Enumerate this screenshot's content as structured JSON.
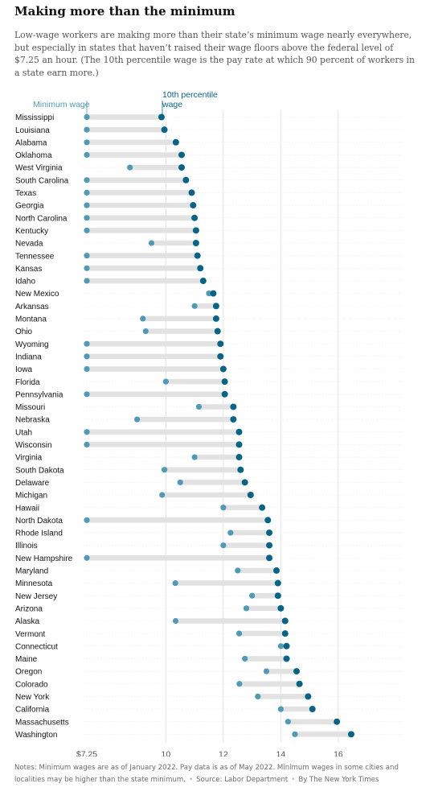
{
  "header": {
    "title": "Making more than the minimum",
    "subtitle": "Low-wage workers are making more than their state’s minimum wage nearly everywhere, but especially in states that haven’t raised their wage floors above the federal level of $7.25 an hour. (The 10th percentile wage is the pay rate at which 90 percent of workers in a state earn more.)"
  },
  "footer": {
    "notes": "Notes: Minimum wages are as of January 2022. Pay data is as of May 2022. Minimum wages in some cities and localities may be higher than the state minimum.",
    "source": "Source: Labor Department",
    "credit": "By The New York Times"
  },
  "colors": {
    "minimum": "#4f9bb5",
    "percentile": "#076487",
    "connector": "#e2e2e2",
    "grid": "#e4e4e4"
  },
  "chart_data": {
    "type": "dumbbell",
    "legend": {
      "minimum": "Minimum wage",
      "percentile_line1": "10th percentile",
      "percentile_line2": "wage"
    },
    "xlim": [
      7.0,
      17.3
    ],
    "ticks": [
      {
        "value": 7.25,
        "label": "$7.25"
      },
      {
        "value": 10,
        "label": "10"
      },
      {
        "value": 12,
        "label": "12"
      },
      {
        "value": 14,
        "label": "14"
      },
      {
        "value": 16,
        "label": "16"
      }
    ],
    "rows": [
      {
        "state": "Mississippi",
        "minimum": 7.25,
        "percentile": 9.85
      },
      {
        "state": "Louisiana",
        "minimum": 7.25,
        "percentile": 9.95
      },
      {
        "state": "Alabama",
        "minimum": 7.25,
        "percentile": 10.35
      },
      {
        "state": "Oklahoma",
        "minimum": 7.25,
        "percentile": 10.55
      },
      {
        "state": "West Virginia",
        "minimum": 8.75,
        "percentile": 10.55
      },
      {
        "state": "South Carolina",
        "minimum": 7.25,
        "percentile": 10.7
      },
      {
        "state": "Texas",
        "minimum": 7.25,
        "percentile": 10.9
      },
      {
        "state": "Georgia",
        "minimum": 7.25,
        "percentile": 10.95
      },
      {
        "state": "North Carolina",
        "minimum": 7.25,
        "percentile": 11.0
      },
      {
        "state": "Kentucky",
        "minimum": 7.25,
        "percentile": 11.05
      },
      {
        "state": "Nevada",
        "minimum": 9.5,
        "percentile": 11.05
      },
      {
        "state": "Tennessee",
        "minimum": 7.25,
        "percentile": 11.1
      },
      {
        "state": "Kansas",
        "minimum": 7.25,
        "percentile": 11.2
      },
      {
        "state": "Idaho",
        "minimum": 7.25,
        "percentile": 11.3
      },
      {
        "state": "New Mexico",
        "minimum": 11.5,
        "percentile": 11.65
      },
      {
        "state": "Arkansas",
        "minimum": 11.0,
        "percentile": 11.75
      },
      {
        "state": "Montana",
        "minimum": 9.2,
        "percentile": 11.75
      },
      {
        "state": "Ohio",
        "minimum": 9.3,
        "percentile": 11.8
      },
      {
        "state": "Wyoming",
        "minimum": 7.25,
        "percentile": 11.9
      },
      {
        "state": "Indiana",
        "minimum": 7.25,
        "percentile": 11.9
      },
      {
        "state": "Iowa",
        "minimum": 7.25,
        "percentile": 12.0
      },
      {
        "state": "Florida",
        "minimum": 10.0,
        "percentile": 12.05
      },
      {
        "state": "Pennsylvania",
        "minimum": 7.25,
        "percentile": 12.05
      },
      {
        "state": "Missouri",
        "minimum": 11.15,
        "percentile": 12.35
      },
      {
        "state": "Nebraska",
        "minimum": 9.0,
        "percentile": 12.35
      },
      {
        "state": "Utah",
        "minimum": 7.25,
        "percentile": 12.55
      },
      {
        "state": "Wisconsin",
        "minimum": 7.25,
        "percentile": 12.55
      },
      {
        "state": "Virginia",
        "minimum": 11.0,
        "percentile": 12.55
      },
      {
        "state": "South Dakota",
        "minimum": 9.95,
        "percentile": 12.6
      },
      {
        "state": "Delaware",
        "minimum": 10.5,
        "percentile": 12.75
      },
      {
        "state": "Michigan",
        "minimum": 9.87,
        "percentile": 12.95
      },
      {
        "state": "Hawaii",
        "minimum": 12.0,
        "percentile": 13.35
      },
      {
        "state": "North Dakota",
        "minimum": 7.25,
        "percentile": 13.55
      },
      {
        "state": "Rhode Island",
        "minimum": 12.25,
        "percentile": 13.6
      },
      {
        "state": "Illinois",
        "minimum": 12.0,
        "percentile": 13.6
      },
      {
        "state": "New Hampshire",
        "minimum": 7.25,
        "percentile": 13.6
      },
      {
        "state": "Maryland",
        "minimum": 12.5,
        "percentile": 13.85
      },
      {
        "state": "Minnesota",
        "minimum": 10.33,
        "percentile": 13.9
      },
      {
        "state": "New Jersey",
        "minimum": 13.0,
        "percentile": 13.9
      },
      {
        "state": "Arizona",
        "minimum": 12.8,
        "percentile": 14.0
      },
      {
        "state": "Alaska",
        "minimum": 10.34,
        "percentile": 14.15
      },
      {
        "state": "Vermont",
        "minimum": 12.55,
        "percentile": 14.15
      },
      {
        "state": "Connecticut",
        "minimum": 14.0,
        "percentile": 14.2
      },
      {
        "state": "Maine",
        "minimum": 12.75,
        "percentile": 14.2
      },
      {
        "state": "Oregon",
        "minimum": 13.5,
        "percentile": 14.55
      },
      {
        "state": "Colorado",
        "minimum": 12.56,
        "percentile": 14.65
      },
      {
        "state": "New York",
        "minimum": 13.2,
        "percentile": 14.95
      },
      {
        "state": "California",
        "minimum": 14.0,
        "percentile": 15.1
      },
      {
        "state": "Massachusetts",
        "minimum": 14.25,
        "percentile": 15.95
      },
      {
        "state": "Washington",
        "minimum": 14.49,
        "percentile": 16.45
      }
    ]
  }
}
